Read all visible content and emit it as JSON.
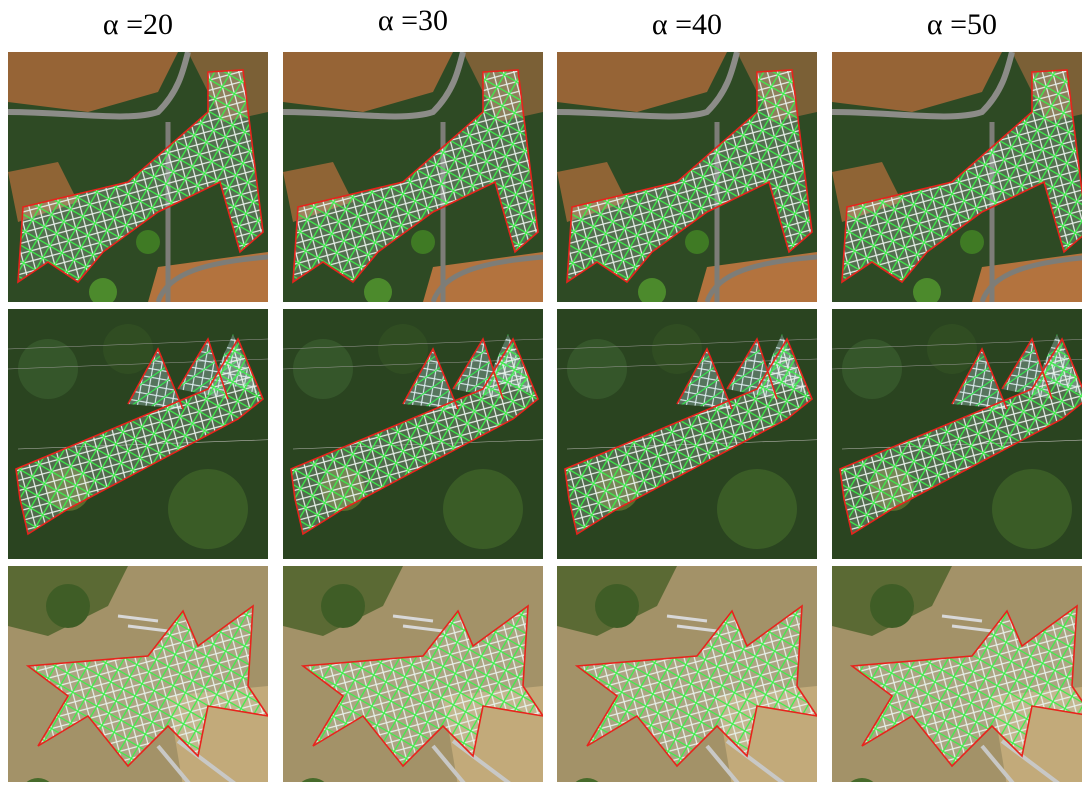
{
  "columns": [
    "α =20",
    "α =30",
    "α =40",
    "α =50"
  ]
}
